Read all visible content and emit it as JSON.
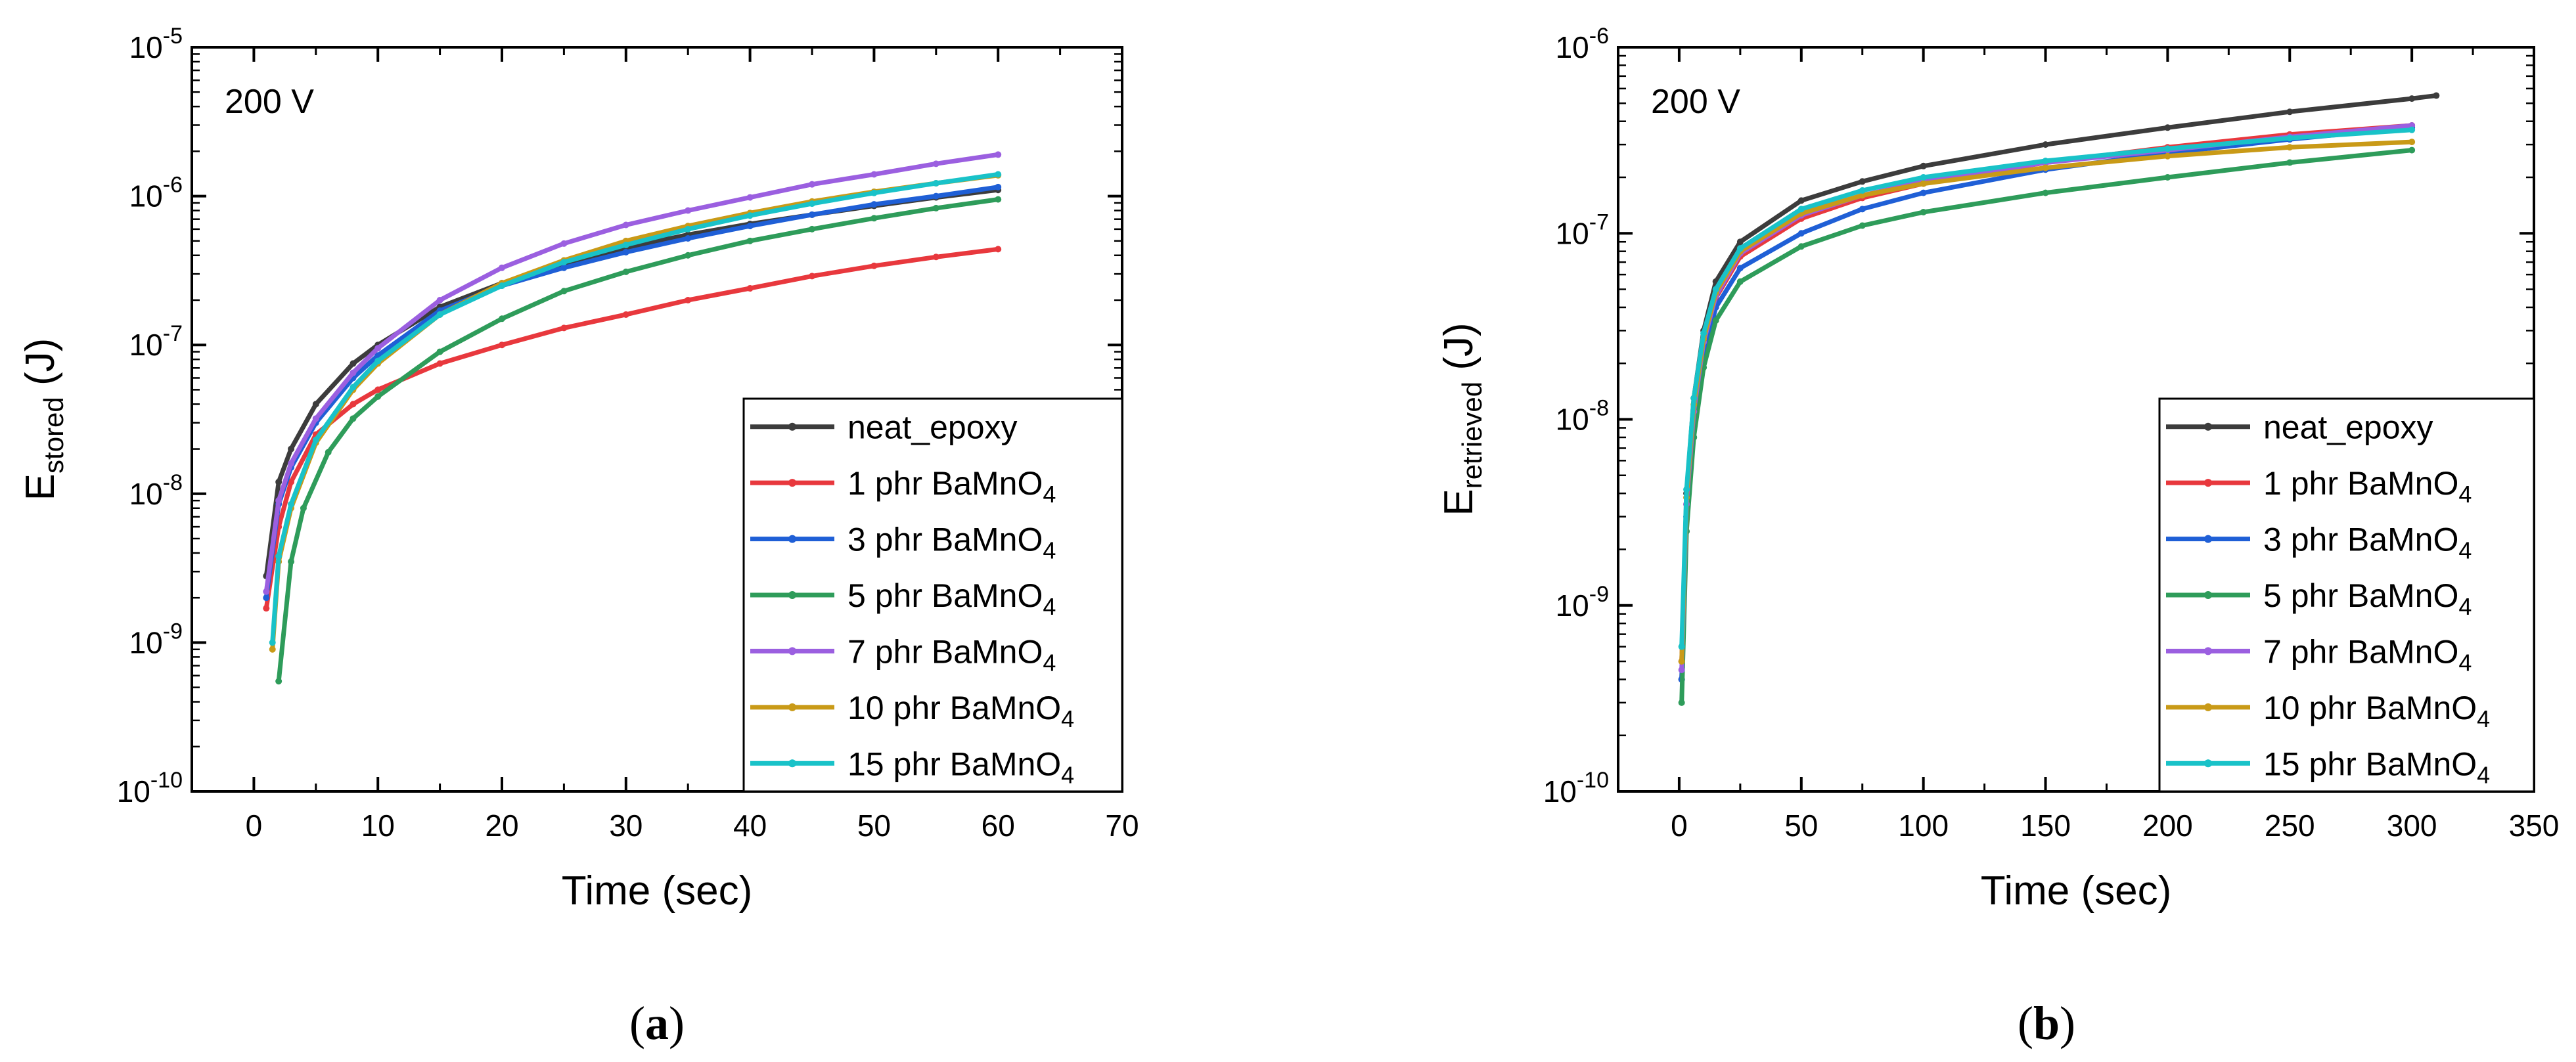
{
  "chart_data": [
    {
      "type": "line",
      "panel": "a",
      "panel_label": "a",
      "annotation": "200 V",
      "xlabel": "Time (sec)",
      "ylabel_main": "E",
      "ylabel_sub": "stored",
      "ylabel_unit": " (J)",
      "xlim": [
        -5,
        70
      ],
      "xticks": [
        0,
        10,
        20,
        30,
        40,
        50,
        60,
        70
      ],
      "yscale": "log",
      "ylim_exp": [
        -10,
        -5
      ],
      "ytick_exps": [
        -10,
        -9,
        -8,
        -7,
        -6,
        -5
      ],
      "grid": false,
      "legend_position": "bottom-right",
      "series": [
        {
          "name": "neat_epoxy",
          "color": "#3c3c3c",
          "x": [
            1,
            2,
            3,
            5,
            8,
            10,
            15,
            20,
            25,
            30,
            35,
            40,
            45,
            50,
            55,
            60
          ],
          "y": [
            2.8e-09,
            1.2e-08,
            2e-08,
            4e-08,
            7.5e-08,
            1e-07,
            1.8e-07,
            2.6e-07,
            3.5e-07,
            4.5e-07,
            5.5e-07,
            6.5e-07,
            7.5e-07,
            8.6e-07,
            9.8e-07,
            1.1e-06
          ]
        },
        {
          "name": "1 phr BaMnO",
          "sub": "4",
          "color": "#e8383d",
          "x": [
            1,
            2,
            3,
            5,
            8,
            10,
            15,
            20,
            25,
            30,
            35,
            40,
            45,
            50,
            55,
            60
          ],
          "y": [
            1.7e-09,
            6e-09,
            1.2e-08,
            2.5e-08,
            4e-08,
            5e-08,
            7.5e-08,
            1e-07,
            1.3e-07,
            1.6e-07,
            2e-07,
            2.4e-07,
            2.9e-07,
            3.4e-07,
            3.9e-07,
            4.4e-07
          ]
        },
        {
          "name": "3 phr BaMnO",
          "sub": "4",
          "color": "#1f5fd6",
          "x": [
            1,
            2,
            3,
            5,
            8,
            10,
            15,
            20,
            25,
            30,
            35,
            40,
            45,
            50,
            55,
            60
          ],
          "y": [
            2e-09,
            8.5e-09,
            1.5e-08,
            3e-08,
            6e-08,
            8.5e-08,
            1.7e-07,
            2.5e-07,
            3.3e-07,
            4.2e-07,
            5.2e-07,
            6.3e-07,
            7.5e-07,
            8.8e-07,
            1e-06,
            1.15e-06
          ]
        },
        {
          "name": "5 phr BaMnO",
          "sub": "4",
          "color": "#2e9c5a",
          "x": [
            2,
            3,
            4,
            6,
            8,
            10,
            15,
            20,
            25,
            30,
            35,
            40,
            45,
            50,
            55,
            60
          ],
          "y": [
            5.5e-10,
            3.5e-09,
            8e-09,
            1.9e-08,
            3.2e-08,
            4.5e-08,
            9e-08,
            1.5e-07,
            2.3e-07,
            3.1e-07,
            4e-07,
            5e-07,
            6e-07,
            7.1e-07,
            8.3e-07,
            9.5e-07
          ]
        },
        {
          "name": "7 phr BaMnO",
          "sub": "4",
          "color": "#9b5fe0",
          "x": [
            1,
            2,
            3,
            5,
            8,
            10,
            15,
            20,
            25,
            30,
            35,
            40,
            45,
            50,
            55,
            60
          ],
          "y": [
            2.2e-09,
            9e-09,
            1.6e-08,
            3.2e-08,
            6.5e-08,
            9.5e-08,
            2e-07,
            3.3e-07,
            4.8e-07,
            6.4e-07,
            8e-07,
            9.8e-07,
            1.2e-06,
            1.4e-06,
            1.65e-06,
            1.9e-06
          ]
        },
        {
          "name": "10 phr BaMnO",
          "sub": "4",
          "color": "#c99a17",
          "x": [
            1.5,
            2,
            3,
            5,
            8,
            10,
            15,
            20,
            25,
            30,
            35,
            40,
            45,
            50,
            55,
            60
          ],
          "y": [
            9e-10,
            3.5e-09,
            8e-09,
            2.2e-08,
            5e-08,
            7.5e-08,
            1.6e-07,
            2.6e-07,
            3.7e-07,
            5e-07,
            6.3e-07,
            7.7e-07,
            9.2e-07,
            1.07e-06,
            1.22e-06,
            1.38e-06
          ]
        },
        {
          "name": "15 phr BaMnO",
          "sub": "4",
          "color": "#19c2c8",
          "x": [
            1.5,
            2,
            3,
            5,
            8,
            10,
            15,
            20,
            25,
            30,
            35,
            40,
            45,
            50,
            55,
            60
          ],
          "y": [
            1e-09,
            3.8e-09,
            8.5e-09,
            2.3e-08,
            5.2e-08,
            7.8e-08,
            1.6e-07,
            2.5e-07,
            3.6e-07,
            4.7e-07,
            6e-07,
            7.4e-07,
            8.9e-07,
            1.05e-06,
            1.22e-06,
            1.4e-06
          ]
        }
      ]
    },
    {
      "type": "line",
      "panel": "b",
      "panel_label": "b",
      "annotation": "200 V",
      "xlabel": "Time (sec)",
      "ylabel_main": "E",
      "ylabel_sub": "retrieved",
      "ylabel_unit": " (J)",
      "xlim": [
        -25,
        350
      ],
      "xticks": [
        0,
        50,
        100,
        150,
        200,
        250,
        300,
        350
      ],
      "yscale": "log",
      "ylim_exp": [
        -10,
        -6
      ],
      "ytick_exps": [
        -10,
        -9,
        -8,
        -7,
        -6
      ],
      "grid": false,
      "legend_position": "bottom-right",
      "series": [
        {
          "name": "neat_epoxy",
          "color": "#3c3c3c",
          "x": [
            1,
            3,
            6,
            10,
            15,
            25,
            50,
            75,
            100,
            150,
            200,
            250,
            300,
            310
          ],
          "y": [
            4e-10,
            4e-09,
            1.3e-08,
            3e-08,
            5.5e-08,
            9e-08,
            1.5e-07,
            1.9e-07,
            2.3e-07,
            3e-07,
            3.7e-07,
            4.5e-07,
            5.3e-07,
            5.5e-07
          ]
        },
        {
          "name": "1 phr BaMnO",
          "sub": "4",
          "color": "#e8383d",
          "x": [
            1,
            3,
            6,
            10,
            15,
            25,
            50,
            75,
            100,
            150,
            200,
            250,
            300
          ],
          "y": [
            5e-10,
            3.5e-09,
            1.1e-08,
            2.5e-08,
            4.5e-08,
            7.5e-08,
            1.2e-07,
            1.55e-07,
            1.85e-07,
            2.4e-07,
            2.9e-07,
            3.4e-07,
            3.8e-07
          ]
        },
        {
          "name": "3 phr BaMnO",
          "sub": "4",
          "color": "#1f5fd6",
          "x": [
            1,
            3,
            6,
            10,
            15,
            25,
            50,
            75,
            100,
            150,
            200,
            250,
            300
          ],
          "y": [
            4e-10,
            3e-09,
            9.5e-09,
            2.2e-08,
            4e-08,
            6.5e-08,
            1e-07,
            1.35e-07,
            1.65e-07,
            2.2e-07,
            2.7e-07,
            3.2e-07,
            3.7e-07
          ]
        },
        {
          "name": "5 phr BaMnO",
          "sub": "4",
          "color": "#2e9c5a",
          "x": [
            1,
            3,
            6,
            10,
            15,
            25,
            50,
            75,
            100,
            150,
            200,
            250,
            300
          ],
          "y": [
            3e-10,
            2.5e-09,
            8e-09,
            1.9e-08,
            3.4e-08,
            5.5e-08,
            8.5e-08,
            1.1e-07,
            1.3e-07,
            1.65e-07,
            2e-07,
            2.4e-07,
            2.8e-07
          ]
        },
        {
          "name": "7 phr BaMnO",
          "sub": "4",
          "color": "#9b5fe0",
          "x": [
            1,
            3,
            6,
            10,
            15,
            25,
            50,
            75,
            100,
            150,
            200,
            250,
            300
          ],
          "y": [
            4.5e-10,
            3.5e-09,
            1.1e-08,
            2.6e-08,
            4.6e-08,
            7.8e-08,
            1.25e-07,
            1.6e-07,
            1.9e-07,
            2.4e-07,
            2.8e-07,
            3.3e-07,
            3.8e-07
          ]
        },
        {
          "name": "10 phr BaMnO",
          "sub": "4",
          "color": "#c99a17",
          "x": [
            1,
            3,
            6,
            10,
            15,
            25,
            50,
            75,
            100,
            150,
            200,
            250,
            300
          ],
          "y": [
            5e-10,
            3.8e-09,
            1.2e-08,
            2.7e-08,
            4.8e-08,
            8e-08,
            1.28e-07,
            1.6e-07,
            1.85e-07,
            2.25e-07,
            2.6e-07,
            2.9e-07,
            3.1e-07
          ]
        },
        {
          "name": "15 phr BaMnO",
          "sub": "4",
          "color": "#19c2c8",
          "x": [
            1,
            3,
            6,
            10,
            15,
            25,
            50,
            75,
            100,
            150,
            200,
            250,
            300
          ],
          "y": [
            6e-10,
            4.2e-09,
            1.3e-08,
            2.9e-08,
            5e-08,
            8.3e-08,
            1.35e-07,
            1.7e-07,
            2e-07,
            2.45e-07,
            2.85e-07,
            3.25e-07,
            3.6e-07
          ]
        }
      ]
    }
  ]
}
